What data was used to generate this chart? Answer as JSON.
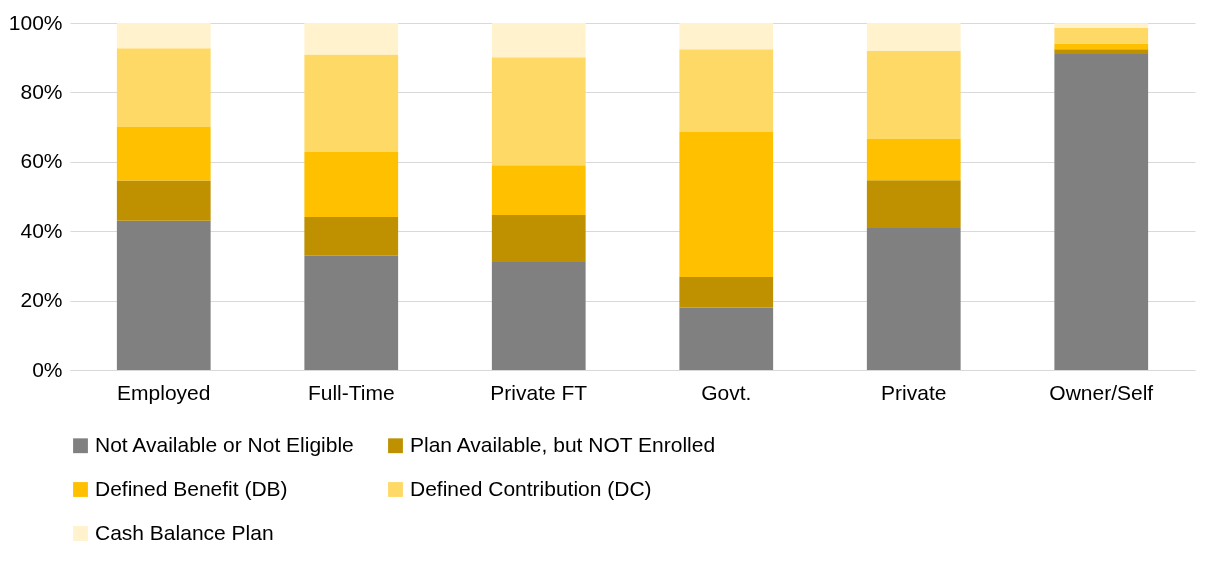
{
  "chart_data": {
    "type": "bar",
    "stacked": true,
    "categories": [
      "Employed",
      "Full-Time",
      "Private FT",
      "Govt.",
      "Private",
      "Owner/Self"
    ],
    "series": [
      {
        "name": "Not Available or Not Eligible",
        "color": "#808080",
        "values": [
          43.0,
          32.9,
          31.1,
          18.0,
          40.9,
          91.1
        ]
      },
      {
        "name": "Plan Available, but NOT Enrolled",
        "color": "#bf9000",
        "values": [
          11.6,
          11.2,
          13.6,
          8.8,
          13.8,
          1.3
        ]
      },
      {
        "name": "Defined Benefit (DB)",
        "color": "#ffc000",
        "values": [
          15.4,
          18.7,
          14.3,
          41.8,
          11.9,
          1.7
        ]
      },
      {
        "name": "Defined Contribution (DC)",
        "color": "#ffd966",
        "values": [
          22.7,
          28.1,
          31.1,
          23.8,
          25.3,
          4.5
        ]
      },
      {
        "name": "Cash Balance Plan",
        "color": "#fff2cc",
        "values": [
          7.3,
          9.1,
          9.9,
          7.6,
          8.1,
          1.3
        ]
      }
    ],
    "ylim": [
      0,
      100
    ],
    "yticks": [
      {
        "value": 0,
        "label": "0%"
      },
      {
        "value": 20,
        "label": "20%"
      },
      {
        "value": 40,
        "label": "40%"
      },
      {
        "value": 60,
        "label": "60%"
      },
      {
        "value": 80,
        "label": "80%"
      },
      {
        "value": 100,
        "label": "100%"
      }
    ],
    "grid": "y",
    "legend": "bottom"
  }
}
